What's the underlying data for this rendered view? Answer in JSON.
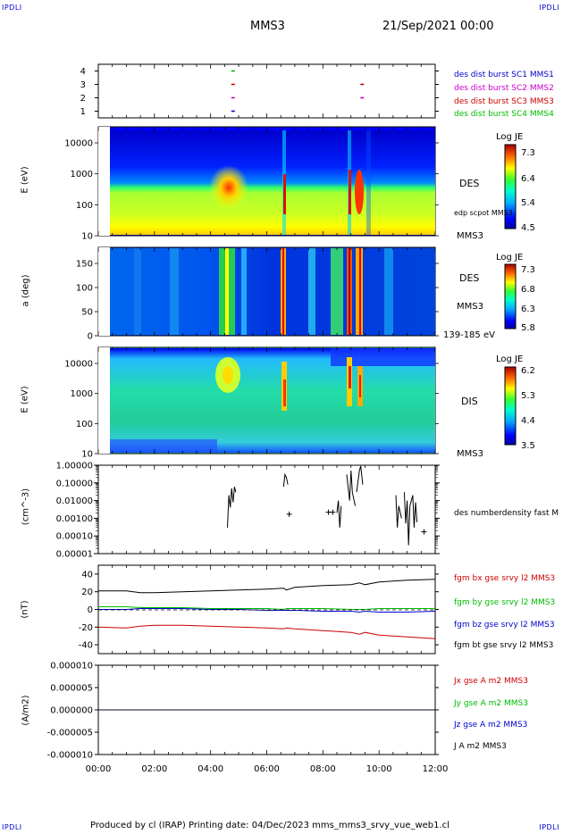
{
  "header": {
    "corner_label": "IPDLI",
    "spacecraft": "MMS3",
    "datetime": "21/Sep/2021 00:00"
  },
  "footer": {
    "text": "Produced by cl (IRAP)   Printing date: 04/Dec/2023   mms_mms3_srvy_vue_web1.cl"
  },
  "colors": {
    "mms1": "#0000cc",
    "mms2": "#cc00cc",
    "mms3": "#cc0000",
    "mms4": "#00bb00",
    "bx": "#cc0000",
    "by": "#00bb00",
    "bz": "#0000cc",
    "bt": "#000000"
  },
  "x_axis": {
    "range_hours": [
      0,
      12
    ],
    "tick_labels": [
      "00:00",
      "02:00",
      "04:00",
      "06:00",
      "08:00",
      "10:00",
      "12:00"
    ]
  },
  "chart_data": [
    {
      "id": "burst",
      "type": "scatter",
      "y_ticks": [
        "1",
        "2",
        "3",
        "4"
      ],
      "ylim": [
        0.5,
        4.5
      ],
      "series": [
        {
          "name": "des dist burst SC1 MMS1",
          "y": 1,
          "x_hours": [
            4.8
          ]
        },
        {
          "name": "des dist burst SC2 MMS2",
          "y": 2,
          "x_hours": [
            4.8
          ]
        },
        {
          "name": "des dist burst SC3 MMS3",
          "y": 3,
          "x_hours": [
            4.8,
            9.4
          ]
        },
        {
          "name": "des dist burst SC4 MMS4",
          "y": 4,
          "x_hours": [
            4.8
          ]
        }
      ],
      "extra_marks": [
        {
          "y": 2,
          "x_hours": 9.4
        }
      ]
    },
    {
      "id": "des-energy",
      "type": "heatmap",
      "ylabel": "E (eV)",
      "y_ticks": [
        "10",
        "100",
        "1000",
        "10000"
      ],
      "instrument": "DES",
      "spacecraft": "MMS3",
      "overlay": "edp scpot MMS3",
      "colorbar_title": "Log JE",
      "colorbar_ticks": [
        "7.3",
        "6.4",
        "5.4",
        "4.5"
      ]
    },
    {
      "id": "des-pitch",
      "type": "heatmap",
      "ylabel": "a (deg)",
      "y_ticks": [
        "0",
        "50",
        "100",
        "150"
      ],
      "instrument": "DES",
      "spacecraft": "MMS3",
      "energy_range": "139-185 eV",
      "colorbar_title": "Log JE",
      "colorbar_ticks": [
        "7.3",
        "6.8",
        "6.3",
        "5.8"
      ]
    },
    {
      "id": "dis-energy",
      "type": "heatmap",
      "ylabel": "E (eV)",
      "y_ticks": [
        "10",
        "100",
        "1000",
        "10000"
      ],
      "instrument": "DIS",
      "spacecraft": "MMS3",
      "colorbar_title": "Log JE",
      "colorbar_ticks": [
        "6.2",
        "5.3",
        "4.4",
        "3.5"
      ]
    },
    {
      "id": "density",
      "type": "line",
      "ylabel": "(cm^-3)",
      "y_ticks": [
        "1.00000",
        "0.10000",
        "0.01000",
        "0.00100",
        "0.00010",
        "0.00001"
      ],
      "ylim": [
        1e-05,
        1
      ],
      "scale": "log",
      "series": [
        {
          "name": "des numberdensity fast M",
          "segments": [
            [
              [
                4.6,
                0.0003
              ],
              [
                4.65,
                0.02
              ],
              [
                4.7,
                0.004
              ],
              [
                4.75,
                0.05
              ],
              [
                4.8,
                0.008
              ],
              [
                4.85,
                0.06
              ],
              [
                4.9,
                0.03
              ]
            ],
            [
              [
                6.6,
                0.06
              ],
              [
                6.65,
                0.3
              ],
              [
                6.7,
                0.2
              ],
              [
                6.75,
                0.08
              ]
            ],
            [
              [
                8.5,
                0.002
              ],
              [
                8.55,
                0.01
              ],
              [
                8.6,
                0.0003
              ],
              [
                8.65,
                0.005
              ]
            ],
            [
              [
                8.85,
                0.3
              ],
              [
                8.95,
                0.01
              ],
              [
                9.0,
                0.5
              ],
              [
                9.05,
                0.03
              ],
              [
                9.15,
                0.005
              ]
            ],
            [
              [
                9.2,
                0.03
              ],
              [
                9.3,
                0.5
              ],
              [
                9.35,
                0.9
              ],
              [
                9.42,
                0.08
              ]
            ],
            [
              [
                10.6,
                0.02
              ],
              [
                10.65,
                0.0003
              ],
              [
                10.7,
                0.005
              ],
              [
                10.8,
                0.001
              ]
            ],
            [
              [
                10.9,
                0.03
              ],
              [
                10.95,
                0.0005
              ],
              [
                11.0,
                0.01
              ],
              [
                11.05,
                3e-05
              ],
              [
                11.1,
                0.005
              ],
              [
                11.2,
                0.02
              ],
              [
                11.25,
                0.0003
              ],
              [
                11.3,
                0.008
              ],
              [
                11.35,
                0.0006
              ]
            ]
          ],
          "markers": [
            [
              6.8,
              0.0017
            ],
            [
              8.2,
              0.0022
            ],
            [
              8.35,
              0.0022
            ],
            [
              11.6,
              0.00017
            ]
          ]
        }
      ]
    },
    {
      "id": "fgm",
      "type": "line",
      "ylabel": "(nT)",
      "y_ticks": [
        "40",
        "20",
        "0",
        "-20",
        "-40"
      ],
      "ylim": [
        -50,
        50
      ],
      "x_hours": [
        0,
        1,
        1.5,
        2,
        3,
        4,
        5,
        6,
        6.6,
        6.7,
        7,
        8,
        9,
        9.3,
        9.5,
        10,
        11,
        12
      ],
      "series": [
        {
          "name": "fgm bx gse srvy l2 MMS3",
          "color": "#cc0000",
          "values": [
            -20,
            -21,
            -19,
            -18,
            -18,
            -19,
            -20,
            -21,
            -22,
            -21,
            -22,
            -24,
            -26,
            -28,
            -26,
            -29,
            -31,
            -33
          ]
        },
        {
          "name": "fgm by gse srvy l2 MMS3",
          "color": "#00bb00",
          "values": [
            3,
            3,
            2,
            2,
            2,
            1,
            1,
            1,
            0,
            1,
            1,
            1,
            0,
            0,
            0,
            1,
            1,
            1
          ]
        },
        {
          "name": "fgm bz gse srvy l2 MMS3",
          "color": "#0000cc",
          "values": [
            0,
            0,
            1,
            1,
            1,
            0,
            0,
            -1,
            -1,
            -1,
            -1,
            -2,
            -2,
            -3,
            -2,
            -3,
            -3,
            -2
          ]
        },
        {
          "name": "fgm bt gse srvy l2 MMS3",
          "color": "#000000",
          "values": [
            21,
            21,
            19,
            19,
            20,
            21,
            22,
            23,
            24,
            22,
            25,
            27,
            28,
            30,
            28,
            31,
            33,
            34
          ]
        }
      ]
    },
    {
      "id": "current",
      "type": "line",
      "ylabel": "(A/m2)",
      "y_ticks": [
        "0.000010",
        "0.000005",
        "0.000000",
        "-0.000005",
        "-0.000010"
      ],
      "ylim": [
        -1e-05,
        1e-05
      ],
      "x_hours": [
        0,
        12
      ],
      "series": [
        {
          "name": "Jx gse A m2 MMS3",
          "color": "#cc0000",
          "values": [
            0,
            0
          ]
        },
        {
          "name": "Jy gse A m2 MMS3",
          "color": "#00bb00",
          "values": [
            0,
            0
          ]
        },
        {
          "name": "Jz gse A m2 MMS3",
          "color": "#0000cc",
          "values": [
            0,
            0
          ]
        },
        {
          "name": "J A m2 MMS3",
          "color": "#000000",
          "values": [
            0,
            0
          ]
        }
      ]
    }
  ]
}
